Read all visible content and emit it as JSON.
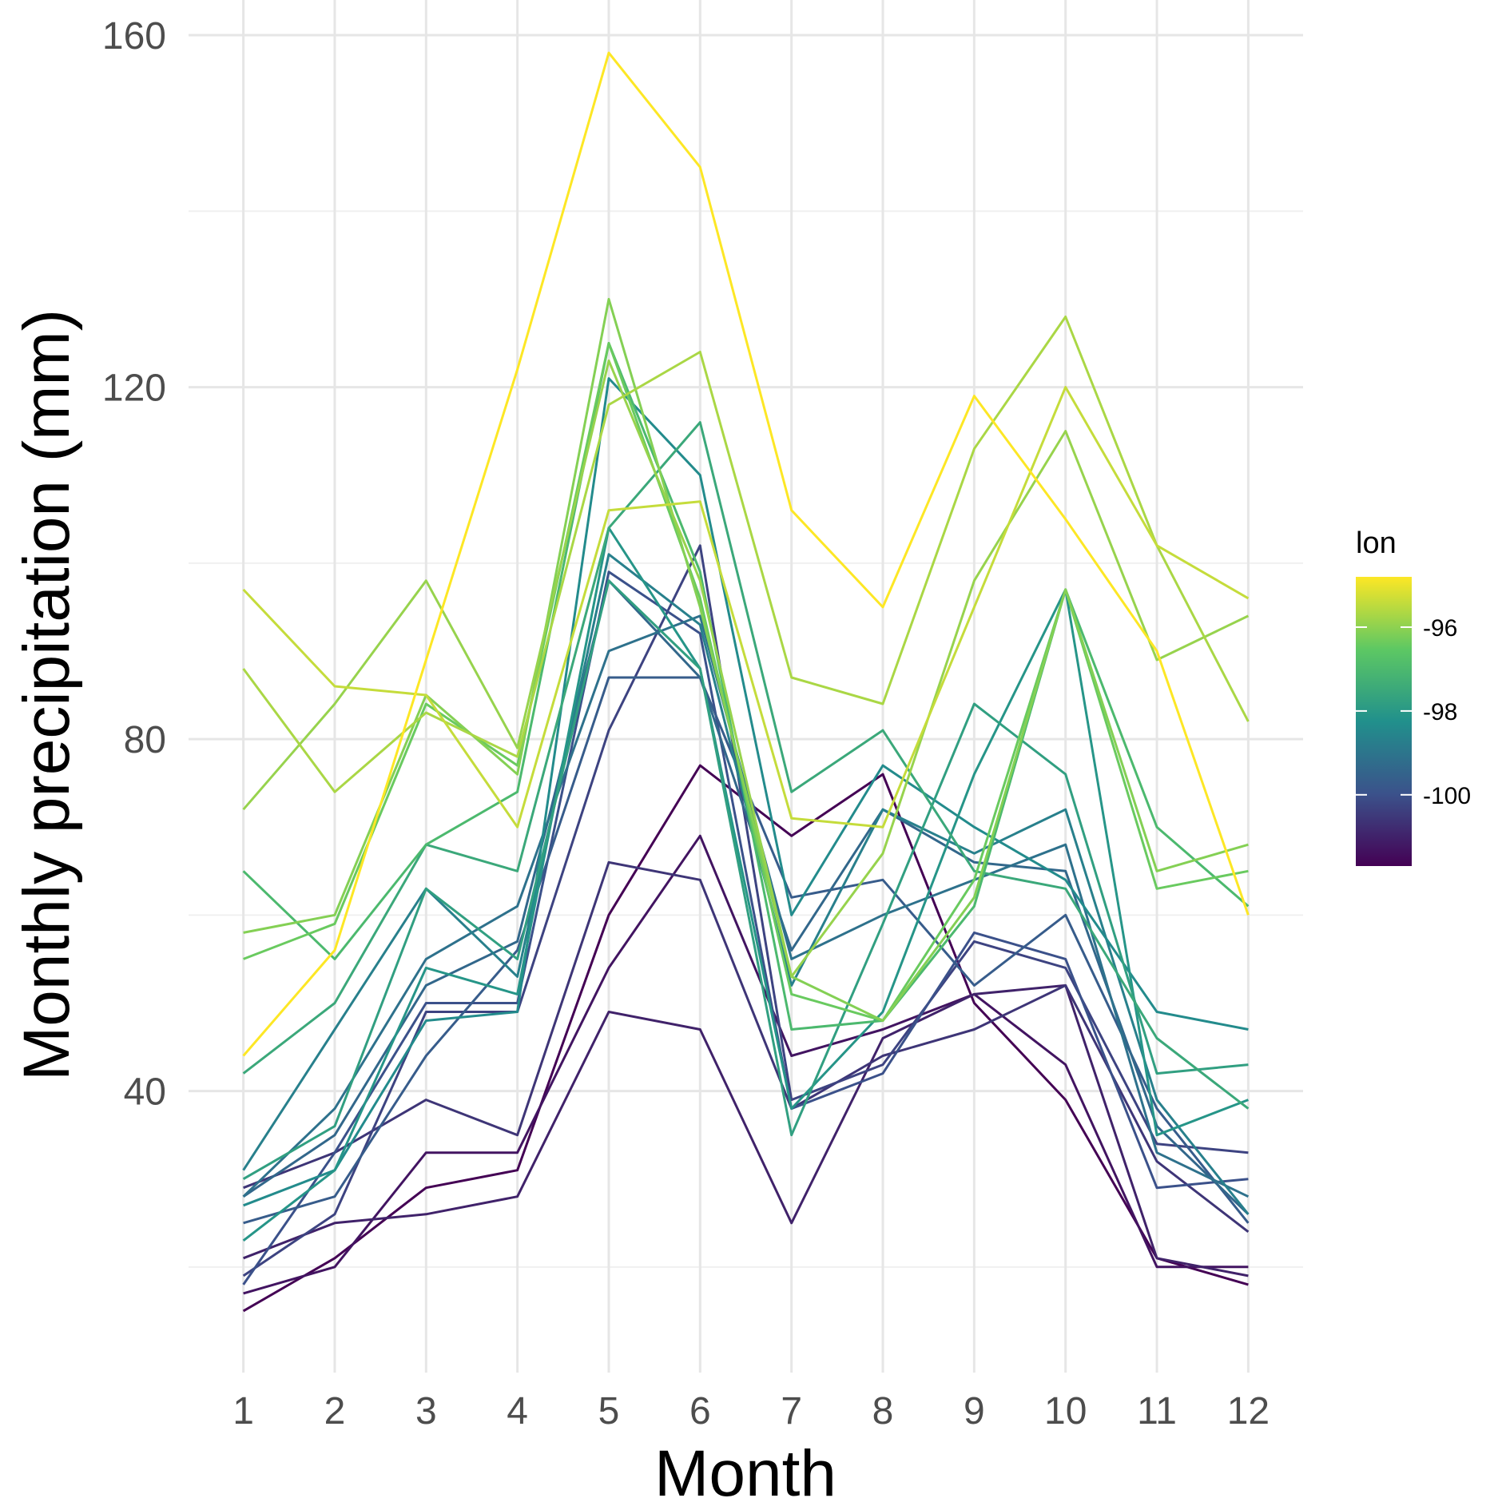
{
  "chart_data": {
    "type": "line",
    "title": "",
    "xlabel": "Month",
    "ylabel": "Monthly precipitation (mm)",
    "x": [
      1,
      2,
      3,
      4,
      5,
      6,
      7,
      8,
      9,
      10,
      11,
      12
    ],
    "x_ticks": [
      "1",
      "2",
      "3",
      "4",
      "5",
      "6",
      "7",
      "8",
      "9",
      "10",
      "11",
      "12"
    ],
    "xlim": [
      0.4,
      12.6
    ],
    "ylim": [
      8,
      164
    ],
    "y_ticks": [
      40,
      80,
      120,
      160
    ],
    "y_minor_ticks": [
      20,
      60,
      100,
      140
    ],
    "grid": true,
    "legend": {
      "title": "lon",
      "placement": "right",
      "type": "colorbar",
      "range": [
        -101.7,
        -94.8
      ],
      "ticks": [
        -96,
        -98,
        -100
      ],
      "colors": [
        "#440154",
        "#3b528b",
        "#21908c",
        "#5dc863",
        "#fde725"
      ]
    },
    "series": [
      {
        "lon": -94.8,
        "values": [
          44,
          56,
          89,
          122,
          158,
          145,
          106,
          95,
          119,
          105,
          90,
          60
        ]
      },
      {
        "lon": -95.4,
        "values": [
          97,
          86,
          85,
          70,
          106,
          107,
          71,
          70,
          95,
          120,
          102,
          96
        ]
      },
      {
        "lon": -95.7,
        "values": [
          88,
          74,
          83,
          78,
          118,
          124,
          87,
          84,
          113,
          128,
          102,
          82
        ]
      },
      {
        "lon": -95.9,
        "values": [
          72,
          84,
          98,
          79,
          123,
          98,
          53,
          67,
          98,
          115,
          89,
          94
        ]
      },
      {
        "lon": -96.1,
        "values": [
          58,
          60,
          85,
          76,
          130,
          95,
          53,
          48,
          62,
          97,
          65,
          68
        ]
      },
      {
        "lon": -96.4,
        "values": [
          55,
          59,
          84,
          77,
          125,
          96,
          51,
          48,
          64,
          97,
          63,
          65
        ]
      },
      {
        "lon": -97.0,
        "values": [
          65,
          55,
          68,
          74,
          125,
          99,
          47,
          48,
          61,
          97,
          70,
          61
        ]
      },
      {
        "lon": -97.5,
        "values": [
          42,
          50,
          68,
          65,
          104,
          116,
          74,
          81,
          65,
          63,
          46,
          38
        ]
      },
      {
        "lon": -97.8,
        "values": [
          30,
          36,
          63,
          55,
          98,
          88,
          35,
          59,
          84,
          76,
          42,
          43
        ]
      },
      {
        "lon": -98.1,
        "values": [
          23,
          31,
          54,
          51,
          104,
          88,
          38,
          49,
          76,
          97,
          35,
          39
        ]
      },
      {
        "lon": -98.4,
        "values": [
          27,
          31,
          48,
          49,
          121,
          110,
          60,
          77,
          70,
          64,
          49,
          47
        ]
      },
      {
        "lon": -98.7,
        "values": [
          31,
          47,
          63,
          53,
          101,
          93,
          52,
          72,
          67,
          72,
          39,
          26
        ]
      },
      {
        "lon": -99.1,
        "values": [
          28,
          38,
          55,
          61,
          90,
          94,
          55,
          60,
          64,
          68,
          33,
          28
        ]
      },
      {
        "lon": -99.4,
        "values": [
          28,
          35,
          52,
          57,
          98,
          87,
          56,
          72,
          66,
          65,
          36,
          26
        ]
      },
      {
        "lon": -99.7,
        "values": [
          25,
          28,
          44,
          56,
          87,
          87,
          62,
          64,
          52,
          60,
          38,
          25
        ]
      },
      {
        "lon": -100.0,
        "values": [
          18,
          33,
          50,
          50,
          99,
          92,
          38,
          42,
          58,
          55,
          29,
          30
        ]
      },
      {
        "lon": -100.3,
        "values": [
          19,
          26,
          49,
          49,
          81,
          102,
          39,
          43,
          57,
          54,
          34,
          33
        ]
      },
      {
        "lon": -100.6,
        "values": [
          29,
          33,
          39,
          35,
          66,
          64,
          38,
          44,
          47,
          52,
          32,
          24
        ]
      },
      {
        "lon": -101.0,
        "values": [
          21,
          25,
          26,
          28,
          49,
          47,
          25,
          46,
          51,
          52,
          21,
          19
        ]
      },
      {
        "lon": -101.3,
        "values": [
          17,
          20,
          33,
          33,
          54,
          69,
          44,
          47,
          51,
          43,
          20,
          20
        ]
      },
      {
        "lon": -101.7,
        "values": [
          15,
          21,
          29,
          31,
          60,
          77,
          69,
          76,
          50,
          39,
          21,
          18
        ]
      }
    ]
  }
}
